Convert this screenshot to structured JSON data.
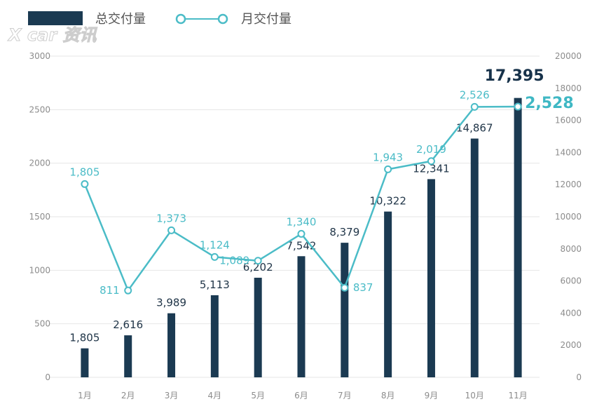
{
  "chart_data": {
    "type": "bar",
    "categories": [
      "1月",
      "2月",
      "3月",
      "4月",
      "5月",
      "6月",
      "7月",
      "8月",
      "9月",
      "10月",
      "11月"
    ],
    "series": [
      {
        "name": "总交付量",
        "type": "bar",
        "axis": "right",
        "values": [
          1805,
          2616,
          3989,
          5113,
          6202,
          7542,
          8379,
          10322,
          12341,
          14867,
          17395
        ],
        "labels": [
          "1,805",
          "2,616",
          "3,989",
          "5,113",
          "6,202",
          "7,542",
          "8,379",
          "10,322",
          "12,341",
          "14,867",
          "17,395"
        ]
      },
      {
        "name": "月交付量",
        "type": "line",
        "axis": "left",
        "values": [
          1805,
          811,
          1373,
          1124,
          1089,
          1340,
          837,
          1943,
          2019,
          2526,
          2528
        ],
        "labels": [
          "1,805",
          "811",
          "1,373",
          "1,124",
          "1,089",
          "1,340",
          "837",
          "1,943",
          "2,019",
          "2,526",
          "2,528"
        ]
      }
    ],
    "left_axis": {
      "ylim": [
        0,
        3000
      ],
      "ticks": [
        "0",
        "500",
        "1000",
        "1500",
        "2000",
        "2500",
        "3000"
      ]
    },
    "right_axis": {
      "ylim": [
        0,
        20000
      ],
      "ticks": [
        "0",
        "2000",
        "4000",
        "6000",
        "8000",
        "10000",
        "12000",
        "14000",
        "16000",
        "18000",
        "20000"
      ]
    },
    "grid": true,
    "legend_position": "top-left",
    "colors": {
      "bar": "#1b3a52",
      "line": "#4bbcc7",
      "grid": "#e6e6e6"
    }
  },
  "legend": {
    "bar_label": "总交付量",
    "line_label": "月交付量"
  },
  "watermark": {
    "text": "X car 资讯"
  }
}
